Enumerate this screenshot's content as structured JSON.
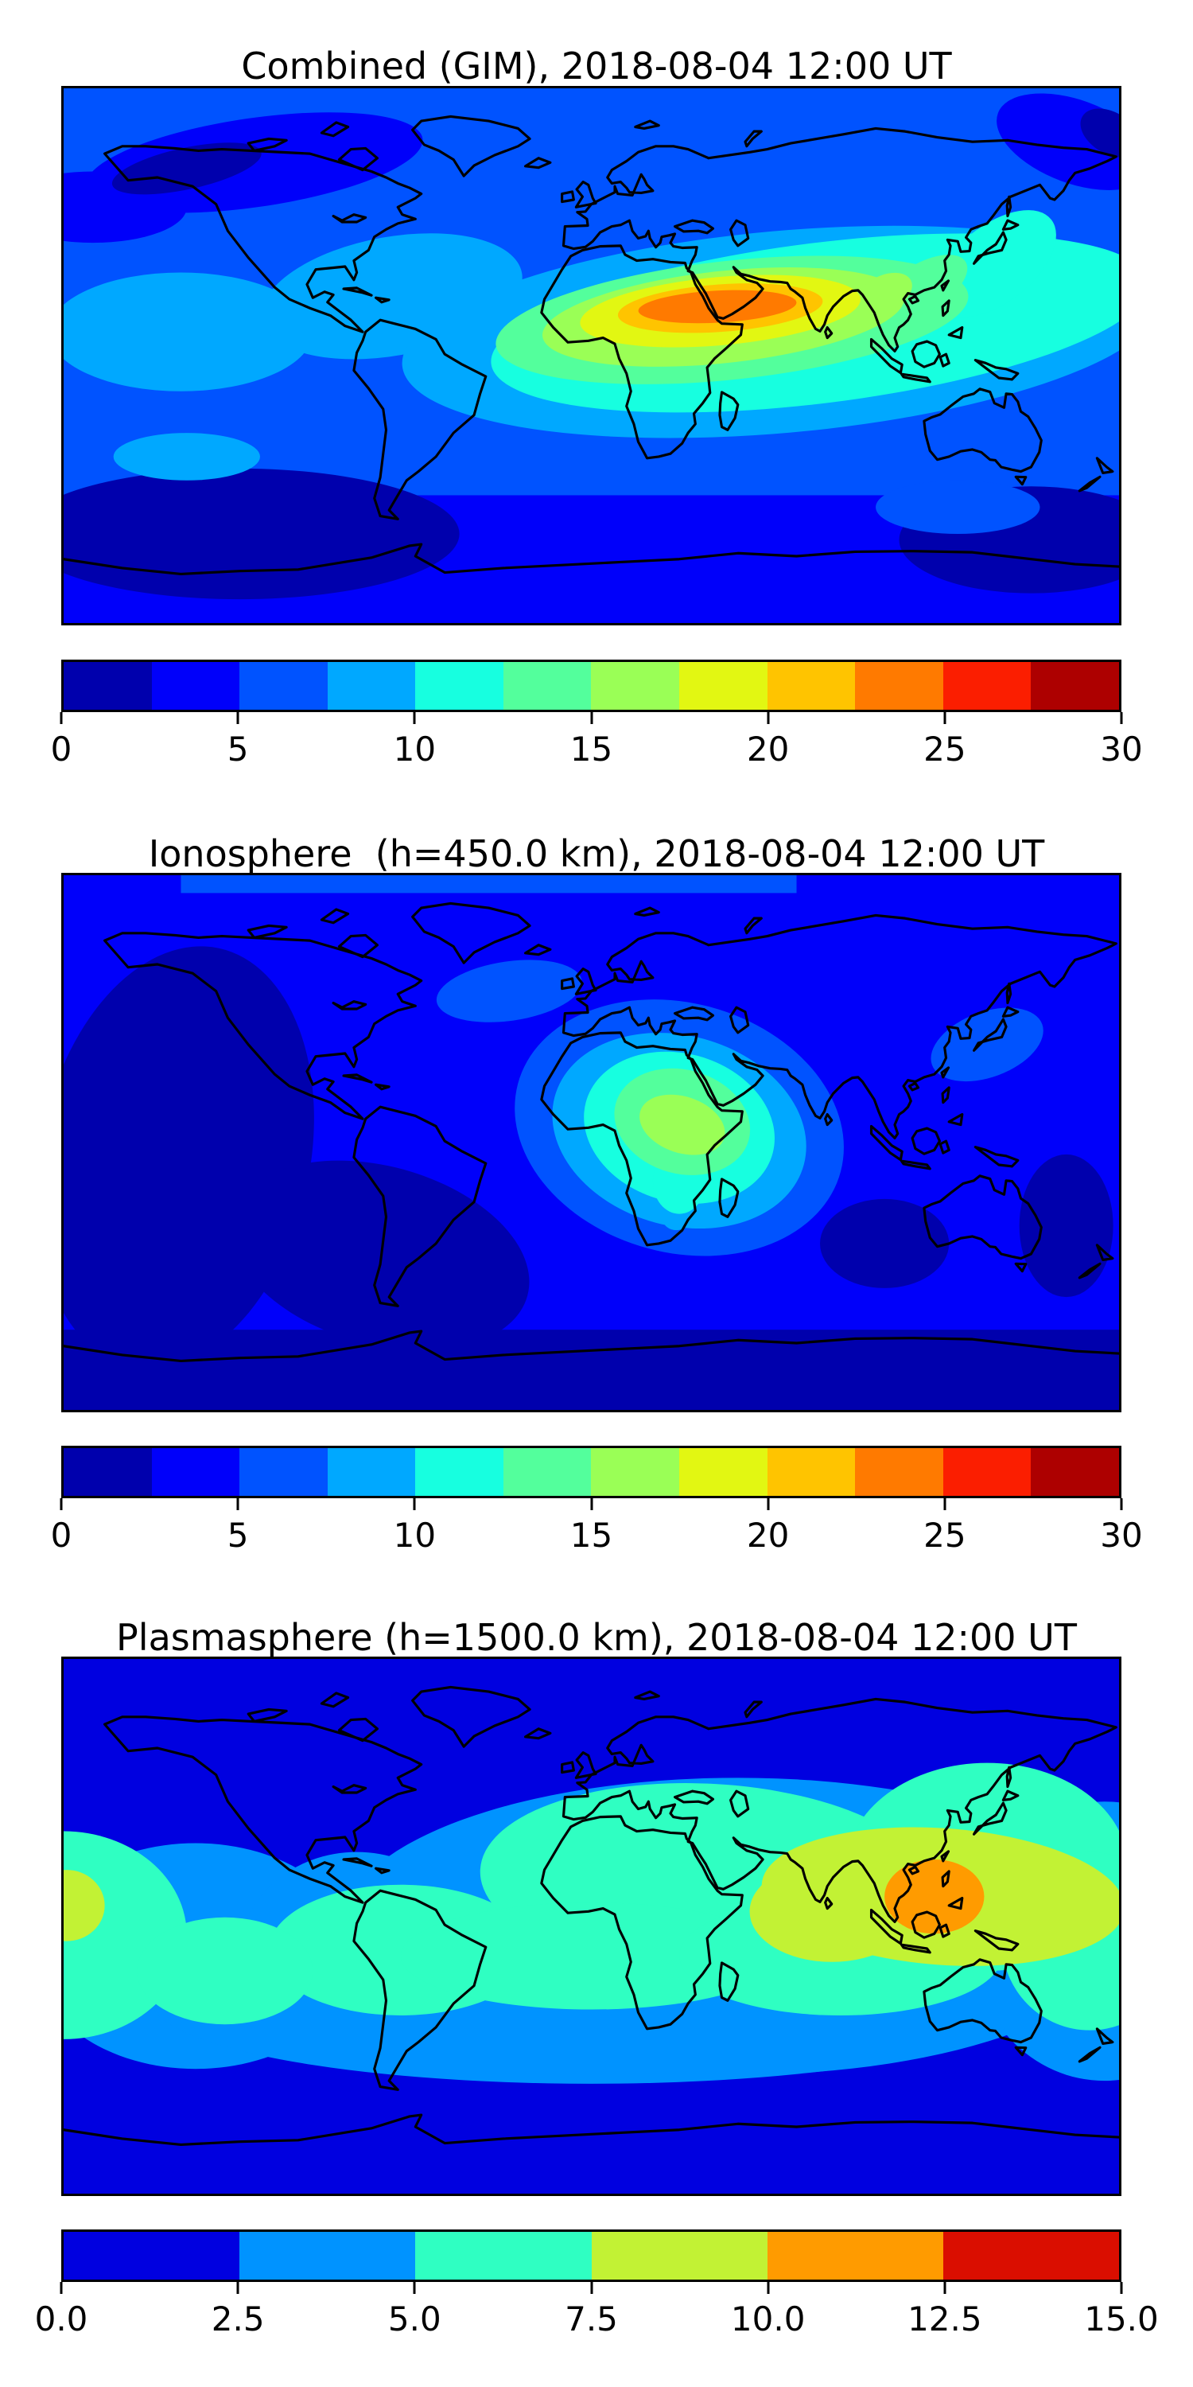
{
  "page": {
    "background": "#ffffff",
    "figure_kind": "three stacked global TEC contour maps"
  },
  "palettes": {
    "jet12": [
      "#0000ad",
      "#0000fa",
      "#0053ff",
      "#00a8ff",
      "#17ffe0",
      "#53ff9c",
      "#9aff56",
      "#e2f712",
      "#ffc400",
      "#ff7a00",
      "#fb1e00",
      "#ad0000"
    ],
    "jet6": [
      "#0000e0",
      "#0093ff",
      "#2fffc2",
      "#c2f234",
      "#ff9b00",
      "#da0e00"
    ]
  },
  "map_style": {
    "coastline_color": "#000000",
    "frame_color": "#000000",
    "projection": "equirectangular"
  },
  "chart_data": [
    {
      "type": "filled-contour-world-map",
      "title": "Combined (GIM), 2018-08-04 12:00 UT",
      "lon_range": [
        -180,
        180
      ],
      "lat_range": [
        -90,
        90
      ],
      "colorbar": {
        "palette": "jet12",
        "min": 0,
        "max": 30,
        "level_step": 2.5,
        "tick_values": [
          0,
          5,
          10,
          15,
          20,
          25,
          30
        ],
        "tick_labels": [
          "0",
          "5",
          "10",
          "15",
          "20",
          "25",
          "30"
        ]
      },
      "features": [
        {
          "name": "equatorial-anomaly-maximum",
          "approx_center_lon_lat": [
            45,
            16
          ],
          "max_level_range": "25–27.5",
          "shape": "elongated east–west band from West Africa across Arabia to India / SE Asia"
        },
        {
          "name": "secondary-enhancement",
          "region": "Japan / western Pacific",
          "level_range": "12.5–17.5"
        },
        {
          "name": "minima",
          "region": "Alaska–NW Canada blob and Antarctic band",
          "level_range": "0–2.5"
        }
      ]
    },
    {
      "type": "filled-contour-world-map",
      "title": "Ionosphere  (h=450.0 km), 2018-08-04 12:00 UT",
      "lon_range": [
        -180,
        180
      ],
      "lat_range": [
        -90,
        90
      ],
      "colorbar": {
        "palette": "jet12",
        "min": 0,
        "max": 30,
        "level_step": 2.5,
        "tick_values": [
          0,
          5,
          10,
          15,
          20,
          25,
          30
        ],
        "tick_labels": [
          "0",
          "5",
          "10",
          "15",
          "20",
          "25",
          "30"
        ]
      },
      "features": [
        {
          "name": "daytime-maximum",
          "approx_center_lon_lat": [
            31,
            6
          ],
          "max_level_range": "15–17.5",
          "shape": "roundish blob over NE Africa / Arabia"
        },
        {
          "name": "north-atlantic-enhancement",
          "approx_center_lon_lat": [
            -28,
            50
          ],
          "level_range": "5–7.5"
        },
        {
          "name": "minima",
          "region": "Pacific / Americas sector and southern high latitudes",
          "level_range": "0–2.5"
        }
      ]
    },
    {
      "type": "filled-contour-world-map",
      "title": "Plasmasphere (h=1500.0 km), 2018-08-04 12:00 UT",
      "lon_range": [
        -180,
        180
      ],
      "lat_range": [
        -90,
        90
      ],
      "colorbar": {
        "palette": "jet6",
        "min": 0,
        "max": 15,
        "level_step": 2.5,
        "tick_values": [
          0,
          2.5,
          5,
          7.5,
          10,
          12.5,
          15
        ],
        "tick_labels": [
          "0.0",
          "2.5",
          "5.0",
          "7.5",
          "10.0",
          "12.5",
          "15.0"
        ]
      },
      "features": [
        {
          "name": "plasmaspheric-maximum",
          "approx_center_lon_lat": [
            117,
            10
          ],
          "max_level_range": "10–12.5",
          "shape": "oval over SE Asia / Philippines"
        },
        {
          "name": "equatorial-band",
          "region": "wavy band following magnetic equator, 5–10",
          "level_range": "5–10"
        },
        {
          "name": "minima",
          "region": "high latitudes north and south",
          "level_range": "0–2.5"
        }
      ]
    }
  ]
}
